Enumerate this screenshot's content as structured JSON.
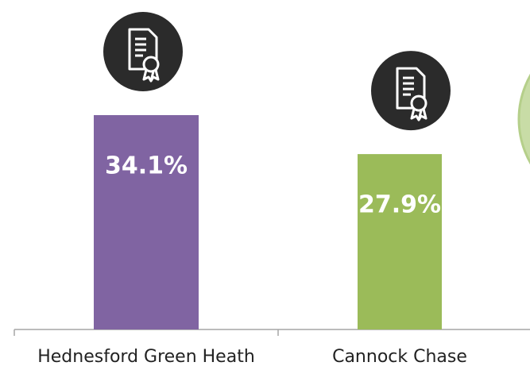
{
  "chart_data": {
    "type": "bar",
    "categories": [
      "Hednesford Green Heath",
      "Cannock Chase"
    ],
    "values": [
      34.1,
      27.9
    ],
    "value_labels": [
      "34.1%",
      "27.9%"
    ],
    "colors": [
      "#8064a2",
      "#9bbb59"
    ]
  }
}
